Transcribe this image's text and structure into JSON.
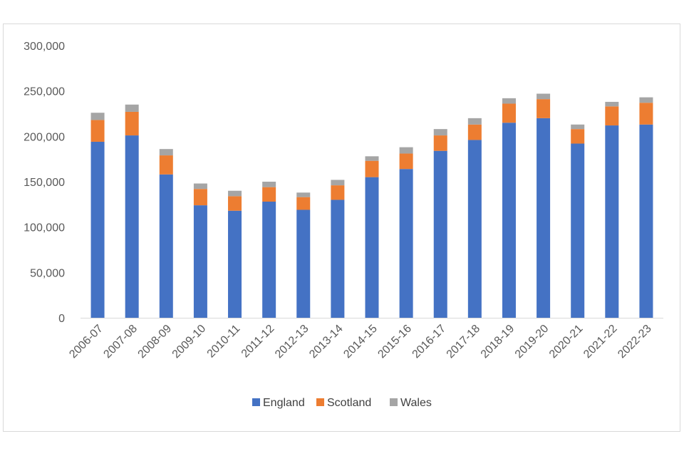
{
  "chart_data": {
    "type": "bar",
    "stacked": true,
    "categories": [
      "2006-07",
      "2007-08",
      "2008-09",
      "2009-10",
      "2010-11",
      "2011-12",
      "2012-13",
      "2013-14",
      "2014-15",
      "2015-16",
      "2016-17",
      "2017-18",
      "2018-19",
      "2019-20",
      "2020-21",
      "2021-22",
      "2022-23"
    ],
    "series": [
      {
        "name": "England",
        "color": "#4472C4",
        "values": [
          194000,
          201000,
          158000,
          124000,
          118000,
          128000,
          119000,
          130000,
          155000,
          164000,
          184000,
          196000,
          215000,
          220000,
          192000,
          212000,
          213000
        ]
      },
      {
        "name": "Scotland",
        "color": "#ED7D31",
        "values": [
          24000,
          26000,
          21000,
          18000,
          16000,
          16000,
          14000,
          16000,
          18000,
          17000,
          17000,
          17000,
          21000,
          21000,
          16000,
          21000,
          24000
        ]
      },
      {
        "name": "Wales",
        "color": "#A5A5A5",
        "values": [
          8000,
          8000,
          7000,
          6000,
          6000,
          6000,
          5000,
          6000,
          5000,
          7000,
          7000,
          7000,
          6000,
          6000,
          5000,
          5000,
          6000
        ]
      }
    ],
    "title": "",
    "xlabel": "",
    "ylabel": "",
    "ylim": [
      0,
      300000
    ],
    "yticks": [
      "0",
      "50,000",
      "100,000",
      "150,000",
      "200,000",
      "250,000",
      "300,000"
    ],
    "grid": false,
    "legend_position": "bottom"
  }
}
